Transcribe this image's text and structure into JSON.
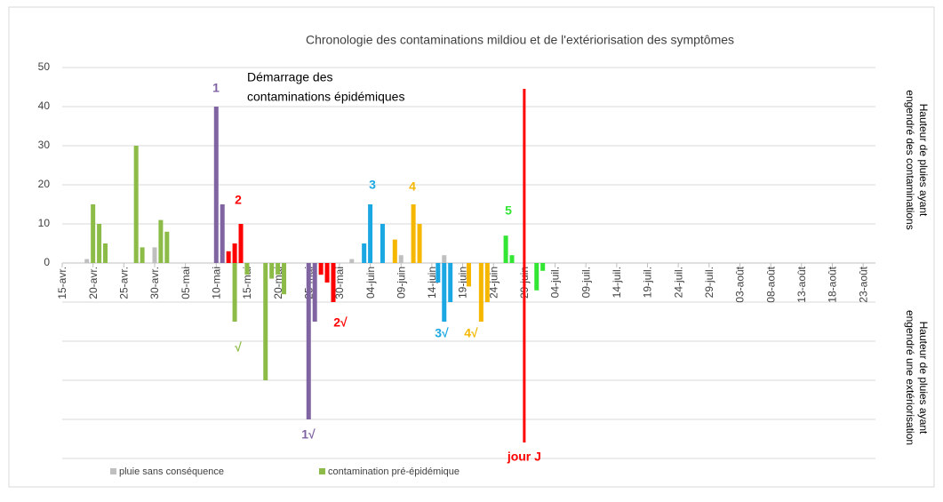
{
  "chart_data": {
    "type": "bar",
    "title": "Chronologie des contaminations mildiou et de l'extériorisation des symptômes",
    "y_label_top": [
      "Hauteur de pluies ayant",
      "engendré des contaminations"
    ],
    "y_label_bottom": [
      "Hauteur de pluies ayant",
      "engendré une extériorisation"
    ],
    "annotation": [
      "Démarrage des",
      "contaminations épidémiques"
    ],
    "marker": {
      "label": "jour J",
      "x": 75,
      "color": "#ff0000"
    },
    "xlim": [
      0,
      132
    ],
    "xticks": [
      {
        "value": 0,
        "label": "15-avr."
      },
      {
        "value": 5,
        "label": "20-avr."
      },
      {
        "value": 10,
        "label": "25-avr."
      },
      {
        "value": 15,
        "label": "30-avr."
      },
      {
        "value": 20,
        "label": "05-mai"
      },
      {
        "value": 25,
        "label": "10-mai"
      },
      {
        "value": 30,
        "label": "15-mai"
      },
      {
        "value": 35,
        "label": "20-mai"
      },
      {
        "value": 40,
        "label": "25-mai"
      },
      {
        "value": 45,
        "label": "30-mai"
      },
      {
        "value": 50,
        "label": "04-juin"
      },
      {
        "value": 55,
        "label": "09-juin"
      },
      {
        "value": 60,
        "label": "14-juin"
      },
      {
        "value": 65,
        "label": "19-juin"
      },
      {
        "value": 70,
        "label": "24-juin"
      },
      {
        "value": 75,
        "label": "29-juin"
      },
      {
        "value": 80,
        "label": "04-juil."
      },
      {
        "value": 85,
        "label": "09-juil."
      },
      {
        "value": 90,
        "label": "14-juil."
      },
      {
        "value": 95,
        "label": "19-juil."
      },
      {
        "value": 100,
        "label": "24-juil."
      },
      {
        "value": 105,
        "label": "29-juil."
      },
      {
        "value": 110,
        "label": "03-août"
      },
      {
        "value": 115,
        "label": "08-août"
      },
      {
        "value": 120,
        "label": "13-août"
      },
      {
        "value": 125,
        "label": "18-août"
      },
      {
        "value": 130,
        "label": "23-août"
      }
    ],
    "ylim": [
      -50,
      50
    ],
    "yticks": [
      0,
      10,
      20,
      30,
      40,
      50
    ],
    "grid": true,
    "series": [
      {
        "name": "pluie sans conséquence",
        "color": "#bfbfbf",
        "x": [
          4,
          15,
          47,
          55,
          62
        ],
        "values": [
          1,
          4,
          1,
          2,
          2
        ]
      },
      {
        "name": "contamination pré-épidémique",
        "color": "#8cbb47",
        "exterior_label": "√",
        "x": [
          5,
          6,
          7,
          12,
          13,
          16,
          17,
          28,
          30,
          33,
          34,
          35,
          36
        ],
        "values": [
          15,
          10,
          5,
          30,
          4,
          11,
          8,
          -15,
          -3,
          -30,
          -4,
          -3,
          -8
        ]
      },
      {
        "label": "1",
        "exterior_label": "1√",
        "color": "#8064a2",
        "x": [
          25,
          26,
          40,
          41
        ],
        "values": [
          40,
          15,
          -40,
          -15
        ]
      },
      {
        "label": "2",
        "exterior_label": "2√",
        "color": "#ff0000",
        "x": [
          27,
          28,
          29,
          42,
          43,
          44
        ],
        "values": [
          3,
          5,
          10,
          -3,
          -5,
          -10
        ]
      },
      {
        "label": "3",
        "exterior_label": "3√",
        "color": "#1aa7e2",
        "x": [
          49,
          50,
          52,
          61,
          62,
          63
        ],
        "values": [
          5,
          15,
          10,
          -5,
          -15,
          -10
        ]
      },
      {
        "label": "4",
        "exterior_label": "4√",
        "color": "#f5b700",
        "x": [
          54,
          57,
          58,
          66,
          68,
          69
        ],
        "values": [
          6,
          15,
          10,
          -6,
          -15,
          -10
        ]
      },
      {
        "label": "5",
        "color": "#33e633",
        "x": [
          72,
          73,
          77,
          78
        ],
        "values": [
          7,
          2,
          -7,
          -2
        ]
      }
    ]
  }
}
